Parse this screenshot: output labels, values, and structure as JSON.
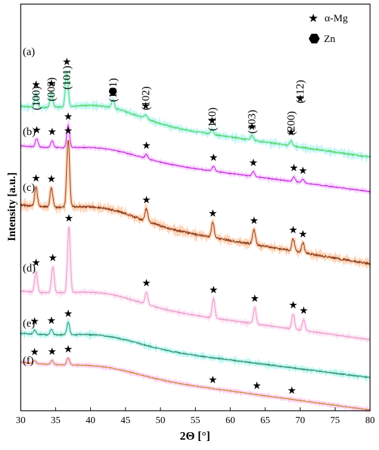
{
  "chart_data": {
    "type": "line",
    "xlabel": "2Θ [°]",
    "ylabel": "Intensity [a.u.]",
    "xlim": [
      30,
      80
    ],
    "x_ticks": [
      30,
      35,
      40,
      45,
      50,
      55,
      60,
      65,
      70,
      75,
      80
    ],
    "y_ticks_shown": false,
    "legend": {
      "placement": "top-right",
      "entries": [
        {
          "symbol": "star",
          "label": "α-Mg"
        },
        {
          "symbol": "hexagon",
          "label": "Zn"
        }
      ]
    },
    "colors": {
      "a": "#4cd964",
      "b": "#c61fe0",
      "c": "#8b3a1a",
      "d": "#e89ac8",
      "e": "#2e8b68",
      "f": "#c8862a"
    },
    "series": [
      {
        "name": "(a)",
        "peaks": [
          {
            "x": 32.2,
            "h": 20,
            "marker": "star"
          },
          {
            "x": 34.4,
            "h": 22,
            "marker": "star"
          },
          {
            "x": 36.6,
            "h": 52,
            "marker": "star"
          },
          {
            "x": 43.2,
            "h": 12,
            "marker": "hexagon"
          },
          {
            "x": 47.9,
            "h": 6,
            "marker": "star"
          },
          {
            "x": 57.4,
            "h": 7,
            "marker": "star"
          },
          {
            "x": 63.1,
            "h": 7,
            "marker": "star"
          },
          {
            "x": 68.7,
            "h": 7,
            "marker": "star"
          },
          {
            "x": 70.0,
            "h": 0,
            "marker": "star"
          }
        ]
      },
      {
        "name": "(b)",
        "peaks": [
          {
            "x": 32.3,
            "h": 12,
            "marker": "star"
          },
          {
            "x": 34.5,
            "h": 10,
            "marker": "star"
          },
          {
            "x": 36.8,
            "h": 32,
            "marker": "star"
          },
          {
            "x": 48.0,
            "h": 6,
            "marker": "star"
          },
          {
            "x": 57.6,
            "h": 7,
            "marker": "star"
          },
          {
            "x": 63.3,
            "h": 7,
            "marker": "star"
          },
          {
            "x": 69.1,
            "h": 7,
            "marker": "star"
          },
          {
            "x": 70.4,
            "h": 5,
            "marker": "star"
          }
        ]
      },
      {
        "name": "(c)",
        "peaks": [
          {
            "x": 32.2,
            "h": 28,
            "marker": "star"
          },
          {
            "x": 34.4,
            "h": 28,
            "marker": "star"
          },
          {
            "x": 36.8,
            "h": 98,
            "marker": "star"
          },
          {
            "x": 48.0,
            "h": 18,
            "marker": "star"
          },
          {
            "x": 57.5,
            "h": 22,
            "marker": "star"
          },
          {
            "x": 63.4,
            "h": 22,
            "marker": "star"
          },
          {
            "x": 69.0,
            "h": 18,
            "marker": "star"
          },
          {
            "x": 70.4,
            "h": 14,
            "marker": "star"
          }
        ]
      },
      {
        "name": "(d)",
        "peaks": [
          {
            "x": 32.2,
            "h": 30,
            "marker": "star"
          },
          {
            "x": 34.6,
            "h": 38,
            "marker": "star"
          },
          {
            "x": 36.9,
            "h": 95,
            "marker": "star"
          },
          {
            "x": 48.0,
            "h": 18,
            "marker": "star"
          },
          {
            "x": 57.6,
            "h": 28,
            "marker": "star"
          },
          {
            "x": 63.5,
            "h": 24,
            "marker": "star"
          },
          {
            "x": 69.0,
            "h": 22,
            "marker": "star"
          },
          {
            "x": 70.5,
            "h": 16,
            "marker": "star"
          }
        ]
      },
      {
        "name": "(e)",
        "peaks": [
          {
            "x": 32.0,
            "h": 6,
            "marker": "star"
          },
          {
            "x": 34.4,
            "h": 8,
            "marker": "star"
          },
          {
            "x": 36.8,
            "h": 18,
            "marker": "star"
          }
        ]
      },
      {
        "name": "(f)",
        "peaks": [
          {
            "x": 32.0,
            "h": 4,
            "marker": "star"
          },
          {
            "x": 34.5,
            "h": 6,
            "marker": "star"
          },
          {
            "x": 36.8,
            "h": 10,
            "marker": "star"
          },
          {
            "x": 57.5,
            "h": 0,
            "marker": "star"
          },
          {
            "x": 63.8,
            "h": 0,
            "marker": "star"
          },
          {
            "x": 68.8,
            "h": 0,
            "marker": "star"
          }
        ]
      }
    ],
    "annotations": [
      {
        "text": "(100)",
        "x": 32.2
      },
      {
        "text": "(002)",
        "x": 34.4
      },
      {
        "text": "(101)",
        "x": 36.6
      },
      {
        "text": "(101)",
        "x": 43.2
      },
      {
        "text": "(102)",
        "x": 47.9
      },
      {
        "text": "(110)",
        "x": 57.4
      },
      {
        "text": "(103)",
        "x": 63.1
      },
      {
        "text": "(200)",
        "x": 68.7
      },
      {
        "text": "(112)",
        "x": 70.0
      }
    ]
  }
}
